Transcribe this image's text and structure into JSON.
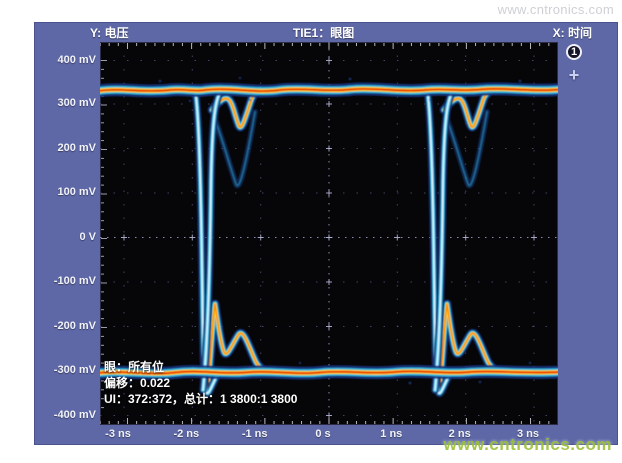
{
  "header": {
    "y_axis_label": "Y: 电压",
    "title": "TIE1：眼图",
    "x_axis_label": "X: 时间"
  },
  "watermarks": {
    "top_right": "www.cntronics.com",
    "bottom_right": "www.cntronics.com"
  },
  "y_axis_labels": [
    "400 mV",
    "300 mV",
    "200 mV",
    "100 mV",
    "0 V",
    "-100 mV",
    "-200 mV",
    "-300 mV",
    "-400 mV"
  ],
  "x_axis_labels": [
    "-3 ns",
    "-2 ns",
    "-1 ns",
    "0 s",
    "1 ns",
    "2 ns",
    "3 ns"
  ],
  "stats_overlay": {
    "eye_line": "眼：所有位",
    "offset_line": "偏移：0.022",
    "ui_line": "UI：372:372，总计：1 3800:1 3800"
  },
  "sidebar": {
    "waveform_badge": "1",
    "plus_label": "+"
  },
  "colors": {
    "panel_blue": "#5e68a6",
    "plot_background": "#060608",
    "trace_core_red": "#ee4400",
    "trace_yellow": "#ffd23a",
    "trace_cyan": "#2fb6e0",
    "trace_halo_blue": "#17337f",
    "watermark_green": "#9cc33a",
    "watermark_gray": "#cdd0d4",
    "label_white": "#f2f3f8"
  },
  "chart_data": {
    "type": "heatmap",
    "subtype": "oscilloscope-eye-diagram",
    "title": "TIE1：眼图",
    "xlabel": "时间",
    "ylabel": "电压",
    "x_ticks": [
      "-3 ns",
      "-2 ns",
      "-1 ns",
      "0 s",
      "1 ns",
      "2 ns",
      "3 ns"
    ],
    "y_ticks": [
      "400 mV",
      "300 mV",
      "200 mV",
      "100 mV",
      "0 V",
      "-100 mV",
      "-200 mV",
      "-300 mV",
      "-400 mV"
    ],
    "xlim_ns": [
      -3.35,
      3.35
    ],
    "ylim_mv": [
      -440,
      440
    ],
    "grid": true,
    "high_rail_mv": 340,
    "low_rail_mv": -305,
    "eye_crossing_times_ns": [
      -1.7,
      1.7
    ],
    "unit_interval_ns": 3.4,
    "ringing": {
      "top_dip_mv": 240,
      "top_deep_dip_mv": 110,
      "bottom_peak_mv": -150,
      "bottom_mound_mv": -210,
      "settle_time_ns": 0.8
    },
    "density_colormap": [
      "#17337f",
      "#2fb6e0",
      "#ffd23a",
      "#ff8c00",
      "#ee4400"
    ],
    "stats": {
      "eye": "所有位",
      "offset": 0.022,
      "ui_counts": "372:372",
      "total": "1 3800:1 3800"
    }
  }
}
